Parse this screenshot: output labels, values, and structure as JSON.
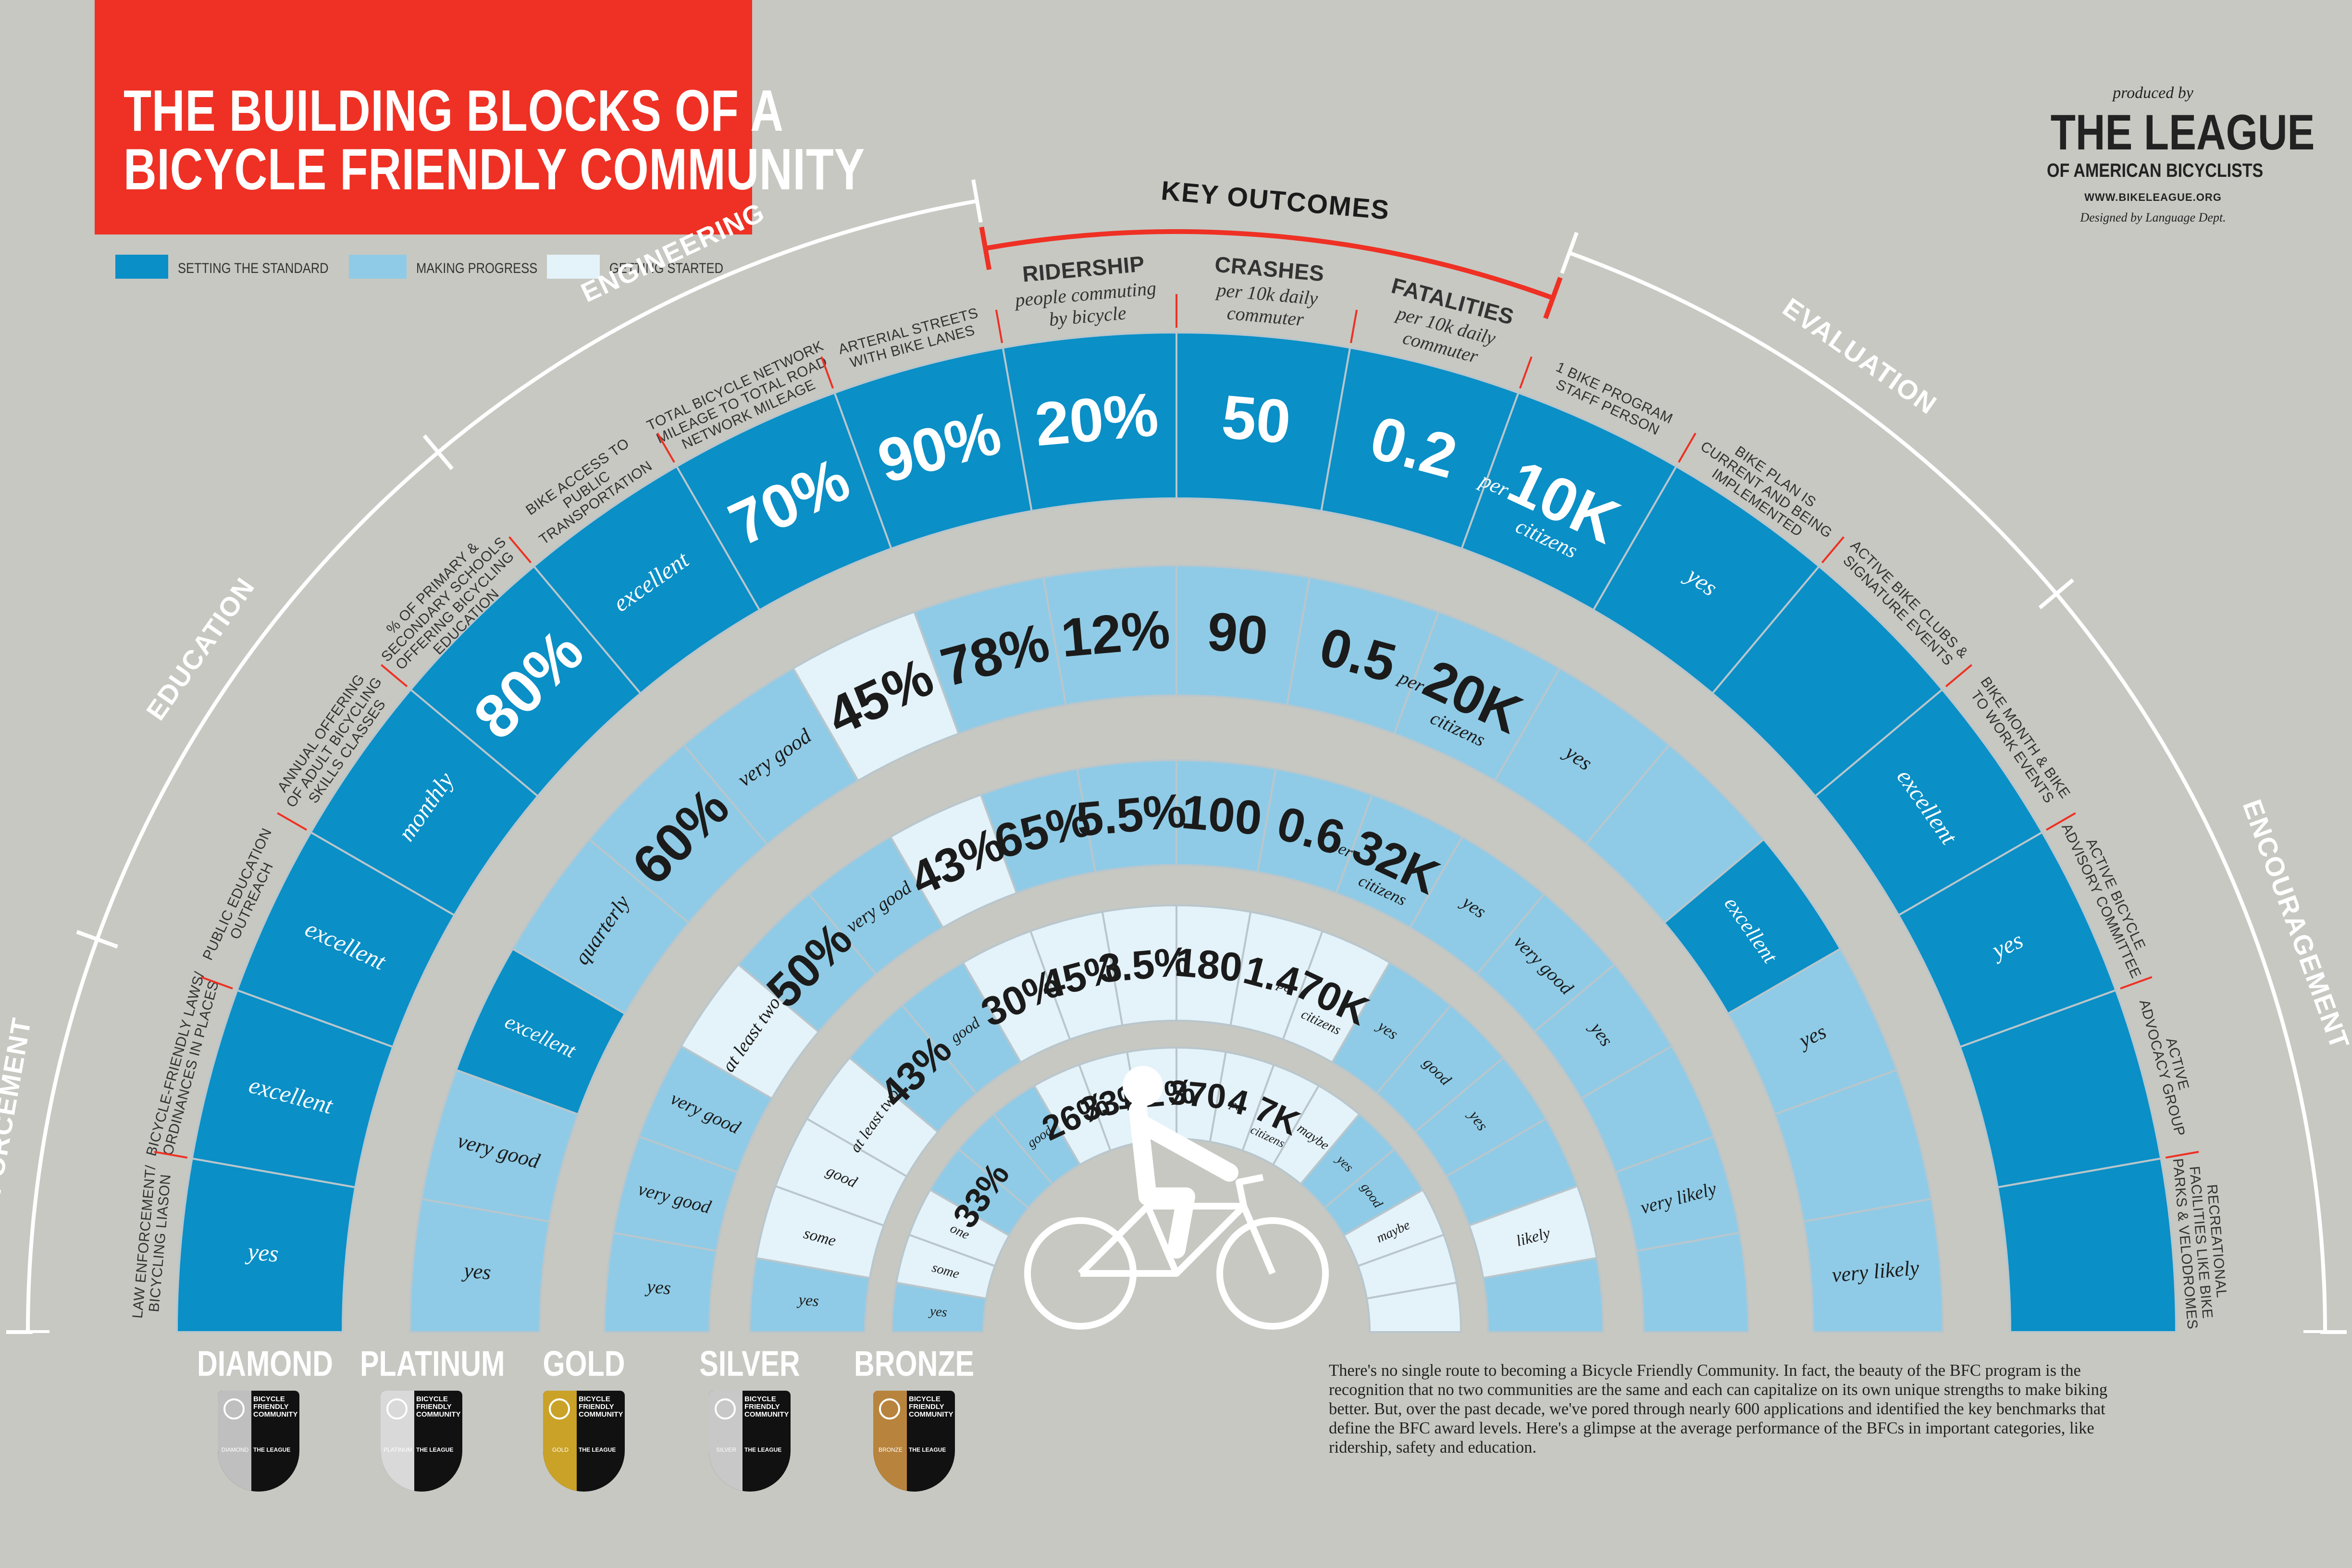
{
  "title": {
    "line1": "THE BUILDING BLOCKS OF A",
    "line2": "BICYCLE FRIENDLY COMMUNITY"
  },
  "legend": [
    {
      "label": "SETTING THE STANDARD",
      "color": "#0a8fc6"
    },
    {
      "label": "MAKING PROGRESS",
      "color": "#8fcbe6"
    },
    {
      "label": "GETTING STARTED",
      "color": "#e4f2f9"
    }
  ],
  "producer": {
    "produced_by": "produced by",
    "org_line1": "THE LEAGUE",
    "org_line2": "OF AMERICAN BICYCLISTS",
    "url": "WWW.BIKELEAGUE.ORG",
    "designer": "Designed by Language Dept."
  },
  "categories": [
    {
      "name": "ENFORCEMENT"
    },
    {
      "name": "EDUCATION"
    },
    {
      "name": "ENGINEERING"
    },
    {
      "name": "KEY OUTCOMES"
    },
    {
      "name": "EVALUATION"
    },
    {
      "name": "ENCOURAGEMENT"
    }
  ],
  "metrics": [
    {
      "label": [
        "LAW ENFORCEMENT/",
        "BICYCLING LIASON"
      ]
    },
    {
      "label": [
        "BICYCLE-FRIENDLY LAWS/",
        "ORDINANCES IN PLACES"
      ]
    },
    {
      "label": [
        "PUBLIC EDUCATION",
        "OUTREACH"
      ]
    },
    {
      "label": [
        "ANNUAL OFFERING",
        "OF ADULT BICYCLING",
        "SKILLS CLASSES"
      ]
    },
    {
      "label": [
        "% OF PRIMARY &",
        "SECONDARY SCHOOLS",
        "OFFERING BICYCLING",
        "EDUCATION"
      ]
    },
    {
      "label": [
        "BIKE ACCESS TO",
        "PUBLIC",
        "TRANSPORTATION"
      ]
    },
    {
      "label": [
        "TOTAL BICYCLE NETWORK",
        "MILEAGE TO TOTAL ROAD",
        "NETWORK MILEAGE"
      ]
    },
    {
      "label": [
        "ARTERIAL STREETS",
        "WITH BIKE LANES"
      ]
    },
    {
      "label": [
        "RIDERSHIP"
      ],
      "sub": [
        "people commuting",
        "by bicycle"
      ]
    },
    {
      "label": [
        "CRASHES"
      ],
      "sub": [
        "per 10k daily",
        "commuter"
      ]
    },
    {
      "label": [
        "FATALITIES"
      ],
      "sub": [
        "per 10k daily",
        "commuter"
      ]
    },
    {
      "label": [
        "1 BIKE PROGRAM",
        "STAFF PERSON"
      ]
    },
    {
      "label": [
        "BIKE PLAN IS",
        "CURRENT AND BEING",
        "IMPLEMENTED"
      ]
    },
    {
      "label": [
        "ACTIVE BIKE CLUBS &",
        "SIGNATURE EVENTS"
      ]
    },
    {
      "label": [
        "BIKE MONTH & BIKE",
        "TO WORK EVENTS"
      ]
    },
    {
      "label": [
        "ACTIVE BICYCLE",
        "ADVISORY COMMITTEE"
      ]
    },
    {
      "label": [
        "ACTIVE",
        "ADVOCACY GROUP"
      ]
    },
    {
      "label": [
        "RECREATIONAL",
        "FACILITIES LIKE BIKE",
        "PARKS & VELODROMES"
      ]
    }
  ],
  "levels": [
    {
      "name": "DIAMOND",
      "badge": "DIAMOND",
      "badge_color": "#bfbfbf"
    },
    {
      "name": "PLATINUM",
      "badge": "PLATINUM",
      "badge_color": "#d9d9d9"
    },
    {
      "name": "GOLD",
      "badge": "GOLD",
      "badge_color": "#c9a227"
    },
    {
      "name": "SILVER",
      "badge": "SILVER",
      "badge_color": "#c8c8c8"
    },
    {
      "name": "BRONZE",
      "badge": "BRONZE",
      "badge_color": "#b8843d"
    }
  ],
  "badge_text": {
    "line1": "BICYCLE",
    "line2": "FRIENDLY",
    "line3": "COMMUNITY",
    "org": "THE LEAGUE"
  },
  "grid": [
    [
      {
        "v": "yes",
        "s": 1
      },
      {
        "v": "excellent",
        "s": 1
      },
      {
        "v": "excellent",
        "s": 1
      },
      {
        "v": "monthly",
        "s": 1
      },
      {
        "v": "80%",
        "s": 1
      },
      {
        "v": "excellent",
        "s": 1
      },
      {
        "v": "70%",
        "s": 1
      },
      {
        "v": "90%",
        "s": 1
      },
      {
        "v": "20%",
        "s": 1
      },
      {
        "v": "50",
        "s": 1
      },
      {
        "v": "0.2",
        "s": 1
      },
      {
        "v": "10K",
        "n": "per",
        "n2": "citizens",
        "s": 1
      },
      {
        "v": "yes",
        "s": 1
      },
      {
        "v": "",
        "s": 1
      },
      {
        "v": "excellent",
        "s": 1
      },
      {
        "v": "yes",
        "s": 1
      },
      {
        "v": "",
        "s": 1
      },
      {
        "v": "",
        "s": 1
      }
    ],
    [
      {
        "v": "yes",
        "s": 2
      },
      {
        "v": "very good",
        "s": 2
      },
      {
        "v": "excellent",
        "s": 1
      },
      {
        "v": "quarterly",
        "s": 2
      },
      {
        "v": "60%",
        "s": 2
      },
      {
        "v": "very good",
        "s": 2
      },
      {
        "v": "45%",
        "s": 3
      },
      {
        "v": "78%",
        "s": 2
      },
      {
        "v": "12%",
        "s": 2
      },
      {
        "v": "90",
        "s": 2
      },
      {
        "v": "0.5",
        "s": 2
      },
      {
        "v": "20K",
        "n": "per",
        "n2": "citizens",
        "s": 2
      },
      {
        "v": "yes",
        "s": 2
      },
      {
        "v": "",
        "s": 2
      },
      {
        "v": "excellent",
        "s": 1
      },
      {
        "v": "yes",
        "s": 2
      },
      {
        "v": "",
        "s": 2
      },
      {
        "v": "very likely",
        "s": 2
      }
    ],
    [
      {
        "v": "yes",
        "s": 2
      },
      {
        "v": "very good",
        "s": 2
      },
      {
        "v": "very good",
        "s": 2
      },
      {
        "v": "at least two",
        "s": 3
      },
      {
        "v": "50%",
        "s": 2
      },
      {
        "v": "very good",
        "s": 2
      },
      {
        "v": "43%",
        "s": 3
      },
      {
        "v": "65%",
        "s": 2
      },
      {
        "v": "5.5%",
        "s": 2
      },
      {
        "v": "100",
        "s": 2
      },
      {
        "v": "0.6",
        "s": 2
      },
      {
        "v": "32K",
        "n": "per",
        "n2": "citizens",
        "s": 2
      },
      {
        "v": "yes",
        "s": 2
      },
      {
        "v": "very good",
        "s": 2
      },
      {
        "v": "yes",
        "s": 2
      },
      {
        "v": "",
        "s": 2
      },
      {
        "v": "very likely",
        "s": 2
      },
      {
        "v": "",
        "s": 2
      }
    ],
    [
      {
        "v": "yes",
        "s": 2
      },
      {
        "v": "some",
        "s": 3
      },
      {
        "v": "good",
        "s": 3
      },
      {
        "v": "at least two",
        "s": 3
      },
      {
        "v": "43%",
        "s": 2
      },
      {
        "v": "good",
        "s": 2
      },
      {
        "v": "30%",
        "s": 3
      },
      {
        "v": "45%",
        "s": 3
      },
      {
        "v": "3.5%",
        "s": 3
      },
      {
        "v": "180",
        "s": 3
      },
      {
        "v": "1.4",
        "s": 3
      },
      {
        "v": "70K",
        "n": "per",
        "n2": "citizens",
        "s": 3
      },
      {
        "v": "yes",
        "s": 2
      },
      {
        "v": "good",
        "s": 2
      },
      {
        "v": "yes",
        "s": 2
      },
      {
        "v": "",
        "s": 2
      },
      {
        "v": "likely",
        "s": 3
      },
      {
        "v": "",
        "s": 2
      }
    ],
    [
      {
        "v": "yes",
        "s": 2
      },
      {
        "v": "some",
        "s": 3
      },
      {
        "v": "one",
        "s": 3
      },
      {
        "v": "33%",
        "s": 2
      },
      {
        "v": "",
        "s": 2
      },
      {
        "v": "good",
        "s": 2
      },
      {
        "v": "26%",
        "s": 3
      },
      {
        "v": "33%",
        "s": 3
      },
      {
        "v": "1.2%",
        "s": 3
      },
      {
        "v": "370",
        "s": 3
      },
      {
        "v": "4",
        "s": 3
      },
      {
        "v": "7K",
        "n": "per",
        "n2": "citizens",
        "s": 3
      },
      {
        "v": "maybe",
        "s": 3
      },
      {
        "v": "yes",
        "s": 2
      },
      {
        "v": "good",
        "s": 2
      },
      {
        "v": "maybe",
        "s": 3
      },
      {
        "v": "",
        "s": 3
      },
      {
        "v": "",
        "s": 3
      }
    ]
  ],
  "description": "There's no single route to becoming a Bicycle Friendly Community. In fact, the beauty of the BFC program is the recognition that no two communities are the same and each can capitalize on its own unique strengths to make biking better. But, over the past decade, we've pored through nearly 600 applications and identified the key benchmarks that define the BFC award levels. Here's a glimpse at the average performance of the BFCs in important categories, like ridership, safety and education.",
  "colors": {
    "standard": "#0a8fc6",
    "progress": "#8fcbe6",
    "started": "#e4f2f9",
    "accent": "#ee3124",
    "background": "#c7c8c2",
    "gap": "#c7c8c2"
  }
}
